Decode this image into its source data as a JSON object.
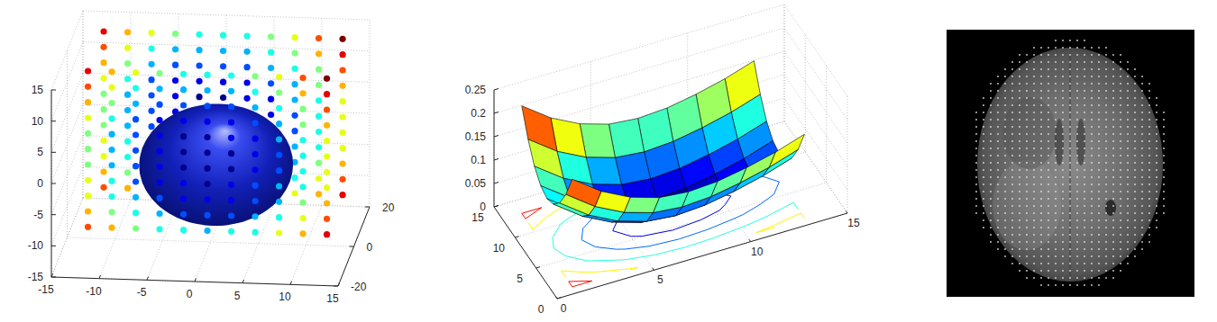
{
  "chart_data": [
    {
      "type": "scatter3d",
      "x": [
        -12,
        -9.5,
        -7,
        -4.5,
        -2,
        0.5,
        3,
        5.5,
        8,
        10.5,
        13
      ],
      "y": [
        -10,
        10
      ],
      "z": [
        -10,
        -7.5,
        -5,
        -2.5,
        0,
        2.5,
        5,
        7.5,
        10,
        12.5,
        15
      ],
      "values": [
        [
          [
            8,
            7,
            5,
            4,
            4,
            3,
            4,
            4,
            6,
            7,
            9
          ],
          [
            7,
            5,
            4,
            3,
            2,
            2,
            2,
            3,
            4,
            6,
            8
          ],
          [
            6,
            4,
            3,
            2,
            1,
            1,
            1,
            2,
            3,
            5,
            7
          ],
          [
            6,
            4,
            2,
            1,
            1,
            0,
            1,
            2,
            3,
            4,
            6
          ],
          [
            5,
            3,
            2,
            1,
            0,
            0,
            0,
            1,
            2,
            4,
            6
          ],
          [
            5,
            3,
            2,
            1,
            0,
            0,
            0,
            1,
            2,
            4,
            6
          ],
          [
            5,
            3,
            2,
            1,
            0,
            0,
            1,
            1,
            3,
            4,
            6
          ],
          [
            6,
            4,
            2,
            1,
            1,
            1,
            1,
            2,
            3,
            5,
            7
          ],
          [
            7,
            5,
            3,
            2,
            2,
            2,
            2,
            3,
            4,
            5,
            8
          ],
          [
            8,
            6,
            4,
            3,
            3,
            3,
            3,
            4,
            5,
            7,
            9
          ],
          [
            9,
            7,
            6,
            5,
            4,
            4,
            4,
            5,
            6,
            8,
            10
          ]
        ],
        [
          [
            8,
            7,
            5,
            4,
            4,
            3,
            4,
            4,
            6,
            7,
            9
          ],
          [
            7,
            5,
            4,
            3,
            2,
            2,
            2,
            3,
            4,
            6,
            8
          ],
          [
            6,
            4,
            3,
            2,
            1,
            1,
            1,
            2,
            3,
            5,
            7
          ],
          [
            6,
            4,
            2,
            1,
            1,
            0,
            1,
            2,
            3,
            4,
            6
          ],
          [
            5,
            3,
            2,
            1,
            0,
            0,
            0,
            1,
            2,
            4,
            6
          ],
          [
            5,
            3,
            2,
            1,
            0,
            0,
            0,
            1,
            2,
            4,
            6
          ],
          [
            5,
            3,
            2,
            1,
            0,
            0,
            1,
            1,
            3,
            4,
            6
          ],
          [
            6,
            4,
            2,
            1,
            1,
            1,
            1,
            2,
            3,
            5,
            7
          ],
          [
            7,
            5,
            3,
            2,
            2,
            2,
            2,
            3,
            4,
            5,
            8
          ],
          [
            8,
            6,
            4,
            3,
            3,
            3,
            3,
            4,
            5,
            7,
            9
          ],
          [
            9,
            7,
            6,
            5,
            4,
            4,
            4,
            5,
            6,
            8,
            10
          ]
        ]
      ],
      "color_range": [
        0,
        10
      ],
      "ellipsoid": {
        "center": [
          1,
          -5,
          -1
        ],
        "radii": [
          8,
          12,
          9
        ]
      },
      "xlim": [
        -15,
        15
      ],
      "xticks": [
        -15,
        -10,
        -5,
        0,
        5,
        10,
        15
      ],
      "ylim": [
        -20,
        20
      ],
      "yticks": [
        -20,
        0,
        20
      ],
      "zlim": [
        -15,
        15
      ],
      "zticks": [
        -15,
        -10,
        -5,
        0,
        5,
        10,
        15
      ],
      "grid": true
    },
    {
      "type": "surface",
      "x": [
        1,
        2.5,
        4,
        5.5,
        7,
        8.5,
        10,
        11.5,
        13
      ],
      "y": [
        1,
        2.5,
        4,
        5.5,
        7,
        8.5,
        10,
        11.5,
        13
      ],
      "z": [
        [
          0.23,
          0.186,
          0.155,
          0.136,
          0.13,
          0.134,
          0.145,
          0.16,
          0.18
        ],
        [
          0.178,
          0.134,
          0.103,
          0.084,
          0.078,
          0.082,
          0.093,
          0.108,
          0.128
        ],
        [
          0.14,
          0.096,
          0.065,
          0.046,
          0.04,
          0.044,
          0.055,
          0.07,
          0.09
        ],
        [
          0.118,
          0.074,
          0.043,
          0.024,
          0.018,
          0.022,
          0.033,
          0.048,
          0.068
        ],
        [
          0.11,
          0.066,
          0.035,
          0.016,
          0.01,
          0.014,
          0.025,
          0.04,
          0.06
        ],
        [
          0.118,
          0.074,
          0.043,
          0.024,
          0.018,
          0.022,
          0.033,
          0.048,
          0.068
        ],
        [
          0.14,
          0.096,
          0.065,
          0.046,
          0.04,
          0.044,
          0.055,
          0.07,
          0.09
        ],
        [
          0.178,
          0.134,
          0.103,
          0.084,
          0.078,
          0.082,
          0.093,
          0.108,
          0.128
        ],
        [
          0.23,
          0.186,
          0.155,
          0.136,
          0.13,
          0.134,
          0.145,
          0.16,
          0.18
        ]
      ],
      "color_range": [
        0.01,
        0.23
      ],
      "contour_levels": [
        0.03,
        0.06,
        0.1,
        0.15,
        0.2
      ],
      "xlim": [
        0,
        15
      ],
      "xticks": [
        0,
        5,
        10,
        15
      ],
      "ylim": [
        0,
        15
      ],
      "yticks": [
        0,
        5,
        10,
        15
      ],
      "zlim": [
        0,
        0.25
      ],
      "zticks": [
        0,
        0.05,
        0.1,
        0.15,
        0.2,
        0.25
      ],
      "grid": true
    },
    {
      "type": "image",
      "tick_labels": false
    }
  ]
}
